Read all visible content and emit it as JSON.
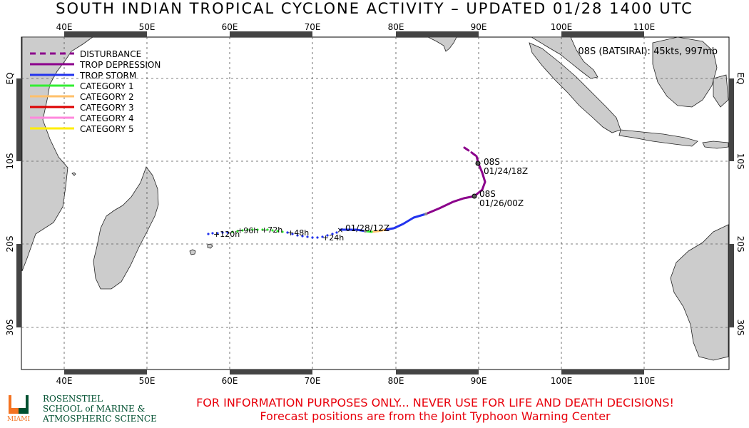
{
  "title": "SOUTH INDIAN TROPICAL CYCLONE ACTIVITY – UPDATED 01/28 1400 UTC",
  "storm_info": "08S (BATSIRAI): 45kts, 997mb",
  "lon_labels": [
    "40E",
    "50E",
    "60E",
    "70E",
    "80E",
    "90E",
    "100E",
    "110E"
  ],
  "lat_labels": [
    "EQ",
    "10S",
    "20S",
    "30S"
  ],
  "legend": [
    {
      "label": "DISTURBANCE",
      "color": "#8b008b",
      "dashed": true
    },
    {
      "label": "TROP DEPRESSION",
      "color": "#8b008b",
      "dashed": false
    },
    {
      "label": "TROP STORM",
      "color": "#2233ee",
      "dashed": false
    },
    {
      "label": "CATEGORY 1",
      "color": "#33ee33",
      "dashed": false
    },
    {
      "label": "CATEGORY 2",
      "color": "#ffc06a",
      "dashed": false
    },
    {
      "label": "CATEGORY 3",
      "color": "#dd0000",
      "dashed": false
    },
    {
      "label": "CATEGORY 4",
      "color": "#ff88dd",
      "dashed": false
    },
    {
      "label": "CATEGORY 5",
      "color": "#ffee00",
      "dashed": false
    }
  ],
  "track_labels": {
    "p1_name": "08S",
    "p1_time": "01/24/18Z",
    "p2_name": "08S",
    "p2_time": "01/26/00Z",
    "current": "01/28/12Z"
  },
  "forecast_labels": [
    "+24h",
    "+48h",
    "+72h",
    "+96h",
    "+120h"
  ],
  "disclaimer1": "FOR INFORMATION PURPOSES ONLY... NEVER USE FOR LIFE AND DEATH DECISIONS!",
  "disclaimer2": "Forecast positions are from the Joint Typhoon Warning Center",
  "logo": {
    "line1": "ROSENSTIEL",
    "line2": "SCHOOL of MARINE &",
    "line3": "ATMOSPHERIC SCIENCE",
    "miami": "MIAMI"
  }
}
